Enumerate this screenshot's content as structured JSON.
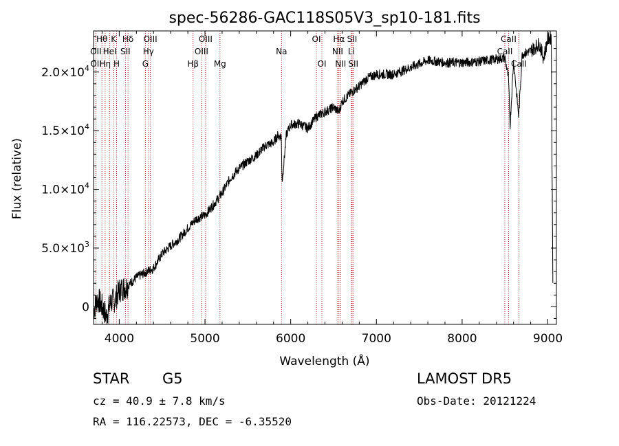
{
  "chart_data": {
    "type": "line",
    "title": "spec-56286-GAC118S05V3_sp10-181.fits",
    "xlabel": "Wavelength (Å)",
    "ylabel": "Flux (relative)",
    "xlim": [
      3700,
      9100
    ],
    "ylim": [
      -1500,
      23500
    ],
    "xticks": [
      4000,
      5000,
      6000,
      7000,
      8000,
      9000
    ],
    "yticks": [
      {
        "value": 0,
        "mant": "0",
        "exp": ""
      },
      {
        "value": 5000,
        "mant": "5.0×10",
        "exp": "3"
      },
      {
        "value": 10000,
        "mant": "1.0×10",
        "exp": "4"
      },
      {
        "value": 15000,
        "mant": "1.5×10",
        "exp": "4"
      },
      {
        "value": 20000,
        "mant": "2.0×10",
        "exp": "4"
      }
    ],
    "series": [
      {
        "x": [
          3700,
          3750,
          3800,
          3850,
          3900,
          3950,
          4000,
          4100,
          4200,
          4300,
          4400,
          4500,
          4600,
          4700,
          4800,
          4900,
          5000,
          5100,
          5200,
          5300,
          5400,
          5500,
          5600,
          5700,
          5800,
          5850,
          5890,
          5900,
          5950,
          6000,
          6100,
          6200,
          6300,
          6400,
          6500,
          6563,
          6600,
          6700,
          6800,
          6900,
          7000,
          7200,
          7400,
          7600,
          7800,
          8000,
          8200,
          8400,
          8500,
          8540,
          8560,
          8600,
          8660,
          8700,
          8800,
          8900,
          8950,
          9000,
          9040,
          9060
        ],
        "y": [
          -300,
          700,
          0,
          -800,
          400,
          600,
          1400,
          1800,
          2500,
          2900,
          3300,
          4500,
          5200,
          5800,
          6700,
          7500,
          7800,
          8700,
          9700,
          11000,
          11800,
          12400,
          12900,
          13700,
          14000,
          14600,
          14500,
          10600,
          14700,
          15500,
          15600,
          15200,
          16200,
          16600,
          17000,
          16600,
          17500,
          18200,
          18800,
          19500,
          19800,
          19800,
          20400,
          21000,
          20800,
          20800,
          20900,
          21100,
          21200,
          19500,
          15500,
          21000,
          16200,
          21500,
          21800,
          22400,
          21200,
          22800,
          23000,
          0
        ],
        "noise": 700
      }
    ],
    "lines": [
      {
        "name": "Hθ",
        "x": 3798,
        "row": 1
      },
      {
        "name": "K",
        "x": 3934,
        "row": 1
      },
      {
        "name": "Hδ",
        "x": 4102,
        "row": 1
      },
      {
        "name": "OIII",
        "x": 4363,
        "row": 1
      },
      {
        "name": "OIII",
        "x": 5007,
        "row": 1
      },
      {
        "name": "OI",
        "x": 6300,
        "row": 1
      },
      {
        "name": "Hα",
        "x": 6563,
        "row": 1
      },
      {
        "name": "SII",
        "x": 6717,
        "row": 1
      },
      {
        "name": "CaII",
        "x": 8542,
        "row": 1
      },
      {
        "name": "OII",
        "x": 3727,
        "row": 2
      },
      {
        "name": "HeI",
        "x": 3889,
        "row": 2
      },
      {
        "name": "SII",
        "x": 4072,
        "row": 2
      },
      {
        "name": "Hγ",
        "x": 4340,
        "row": 2
      },
      {
        "name": "OIII",
        "x": 4959,
        "row": 2
      },
      {
        "name": "Na",
        "x": 5893,
        "row": 2
      },
      {
        "name": "NII",
        "x": 6548,
        "row": 2
      },
      {
        "name": "Li",
        "x": 6708,
        "row": 2
      },
      {
        "name": "CaII",
        "x": 8498,
        "row": 2
      },
      {
        "name": "OII",
        "x": 3729,
        "row": 3
      },
      {
        "name": "Hη",
        "x": 3835,
        "row": 3
      },
      {
        "name": "H",
        "x": 3969,
        "row": 3
      },
      {
        "name": "G",
        "x": 4305,
        "row": 3
      },
      {
        "name": "Hβ",
        "x": 4861,
        "row": 3
      },
      {
        "name": "Mg",
        "x": 5175,
        "row": 3
      },
      {
        "name": "OI",
        "x": 6364,
        "row": 3
      },
      {
        "name": "NII",
        "x": 6583,
        "row": 3
      },
      {
        "name": "SII",
        "x": 6731,
        "row": 3
      },
      {
        "name": "CaII",
        "x": 8662,
        "row": 3
      }
    ],
    "colors": {
      "spectrum": "#000000",
      "lines": "#b22222",
      "axes": "#000000"
    },
    "grid": false,
    "legend": "none"
  },
  "info": {
    "object_class": "STAR",
    "subclass": "G5",
    "survey": "LAMOST  DR5",
    "redshift": "cz = 40.9 ± 7.8 km/s",
    "obs_date": "Obs-Date: 20121224",
    "coords": "RA = 116.22573, DEC =  -6.35520"
  }
}
